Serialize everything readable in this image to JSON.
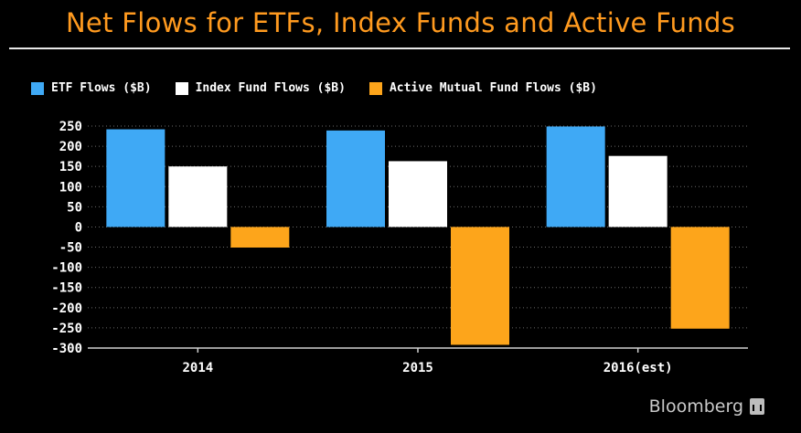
{
  "chart_data": {
    "type": "bar",
    "title": "Net Flows for ETFs, Index Funds and Active Funds",
    "categories": [
      "2014",
      "2015",
      "2016(est)"
    ],
    "series": [
      {
        "name": "ETF Flows ($B)",
        "color": "#3fa9f5",
        "values": [
          242,
          239,
          249
        ]
      },
      {
        "name": "Index Fund Flows ($B)",
        "color": "#ffffff",
        "values": [
          150,
          163,
          176
        ]
      },
      {
        "name": "Active Mutual Fund Flows ($B)",
        "color": "#fda51b",
        "values": [
          -51,
          -292,
          -252
        ]
      }
    ],
    "ylim": [
      -300,
      250
    ],
    "yticks": [
      250,
      200,
      150,
      100,
      50,
      0,
      -50,
      -100,
      -150,
      -200,
      -250,
      -300
    ],
    "xlabel": "",
    "ylabel": "",
    "grid": true,
    "legend_position": "top-left"
  },
  "brand": {
    "text": "Bloomberg",
    "icon": "bloomberg-chart-icon"
  }
}
